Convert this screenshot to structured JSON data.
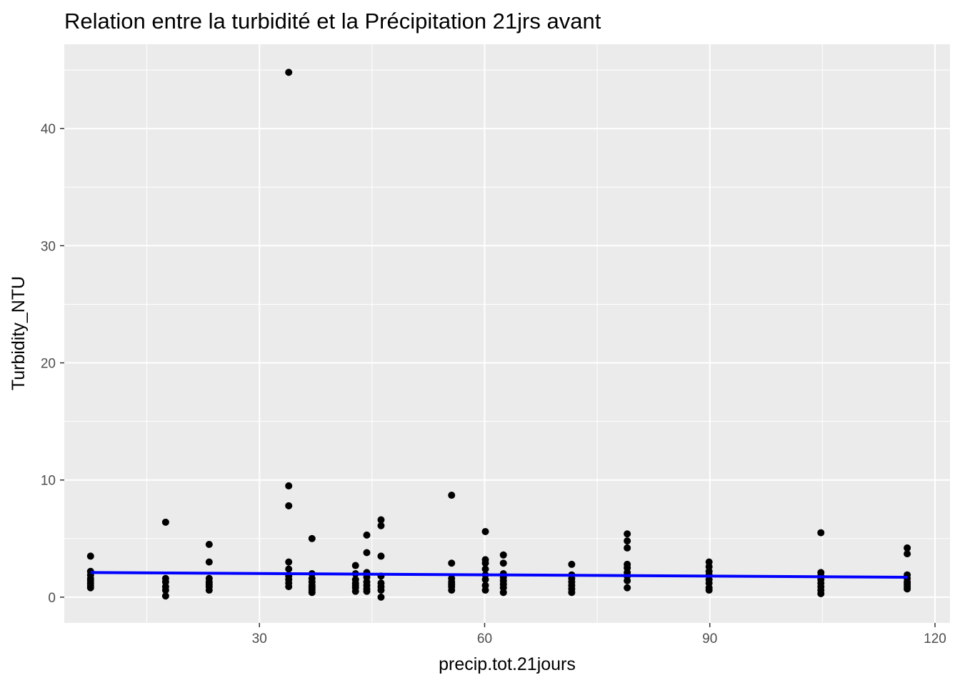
{
  "chart_data": {
    "type": "scatter",
    "title": "Relation entre la turbidité et la Précipitation 21jrs avant",
    "xlabel": "precip.tot.21jours",
    "ylabel": "Turbidity_NTU",
    "xlim": [
      4,
      122
    ],
    "ylim": [
      -2.2,
      47.2
    ],
    "x_ticks": [
      30,
      60,
      90,
      120
    ],
    "y_ticks": [
      0,
      10,
      20,
      30,
      40
    ],
    "x_tick_labels": [
      "30",
      "60",
      "90",
      "120"
    ],
    "y_tick_labels": [
      "0",
      "10",
      "20",
      "30",
      "40"
    ],
    "grid": true,
    "legend": "none",
    "colors": {
      "panel_background": "#ebebeb",
      "grid": "#ffffff",
      "points": "#000000",
      "trend_line": "#0000ff"
    },
    "points": [
      {
        "x": 7.5,
        "y": 3.5
      },
      {
        "x": 7.5,
        "y": 2.2
      },
      {
        "x": 7.5,
        "y": 1.9
      },
      {
        "x": 7.5,
        "y": 1.6
      },
      {
        "x": 7.5,
        "y": 1.4
      },
      {
        "x": 7.5,
        "y": 1.2
      },
      {
        "x": 7.5,
        "y": 1.0
      },
      {
        "x": 7.5,
        "y": 0.8
      },
      {
        "x": 17.5,
        "y": 6.4
      },
      {
        "x": 17.5,
        "y": 1.6
      },
      {
        "x": 17.5,
        "y": 1.3
      },
      {
        "x": 17.5,
        "y": 0.9
      },
      {
        "x": 17.5,
        "y": 0.6
      },
      {
        "x": 17.5,
        "y": 0.1
      },
      {
        "x": 23.3,
        "y": 4.5
      },
      {
        "x": 23.3,
        "y": 3.0
      },
      {
        "x": 23.3,
        "y": 1.6
      },
      {
        "x": 23.3,
        "y": 1.3
      },
      {
        "x": 23.3,
        "y": 1.1
      },
      {
        "x": 23.3,
        "y": 0.9
      },
      {
        "x": 23.3,
        "y": 0.6
      },
      {
        "x": 33.9,
        "y": 44.8
      },
      {
        "x": 33.9,
        "y": 9.5
      },
      {
        "x": 33.9,
        "y": 7.8
      },
      {
        "x": 33.9,
        "y": 3.0
      },
      {
        "x": 33.9,
        "y": 2.4
      },
      {
        "x": 33.9,
        "y": 1.8
      },
      {
        "x": 33.9,
        "y": 1.5
      },
      {
        "x": 33.9,
        "y": 1.2
      },
      {
        "x": 33.9,
        "y": 0.9
      },
      {
        "x": 37.0,
        "y": 5.0
      },
      {
        "x": 37.0,
        "y": 2.0
      },
      {
        "x": 37.0,
        "y": 1.6
      },
      {
        "x": 37.0,
        "y": 1.3
      },
      {
        "x": 37.0,
        "y": 1.0
      },
      {
        "x": 37.0,
        "y": 0.8
      },
      {
        "x": 37.0,
        "y": 0.6
      },
      {
        "x": 37.0,
        "y": 0.4
      },
      {
        "x": 42.8,
        "y": 2.7
      },
      {
        "x": 42.8,
        "y": 2.0
      },
      {
        "x": 42.8,
        "y": 1.5
      },
      {
        "x": 42.8,
        "y": 1.2
      },
      {
        "x": 42.8,
        "y": 1.0
      },
      {
        "x": 42.8,
        "y": 0.8
      },
      {
        "x": 42.8,
        "y": 0.5
      },
      {
        "x": 44.3,
        "y": 5.3
      },
      {
        "x": 44.3,
        "y": 3.8
      },
      {
        "x": 44.3,
        "y": 2.1
      },
      {
        "x": 44.3,
        "y": 1.7
      },
      {
        "x": 44.3,
        "y": 1.3
      },
      {
        "x": 44.3,
        "y": 1.0
      },
      {
        "x": 44.3,
        "y": 0.7
      },
      {
        "x": 44.3,
        "y": 0.5
      },
      {
        "x": 46.2,
        "y": 6.6
      },
      {
        "x": 46.2,
        "y": 6.1
      },
      {
        "x": 46.2,
        "y": 3.5
      },
      {
        "x": 46.2,
        "y": 1.8
      },
      {
        "x": 46.2,
        "y": 1.2
      },
      {
        "x": 46.2,
        "y": 0.9
      },
      {
        "x": 46.2,
        "y": 0.6
      },
      {
        "x": 46.2,
        "y": 0.0
      },
      {
        "x": 55.6,
        "y": 8.7
      },
      {
        "x": 55.6,
        "y": 2.9
      },
      {
        "x": 55.6,
        "y": 1.6
      },
      {
        "x": 55.6,
        "y": 1.3
      },
      {
        "x": 55.6,
        "y": 1.1
      },
      {
        "x": 55.6,
        "y": 0.9
      },
      {
        "x": 55.6,
        "y": 0.6
      },
      {
        "x": 60.1,
        "y": 5.6
      },
      {
        "x": 60.1,
        "y": 3.2
      },
      {
        "x": 60.1,
        "y": 2.9
      },
      {
        "x": 60.1,
        "y": 2.4
      },
      {
        "x": 60.1,
        "y": 1.9
      },
      {
        "x": 60.1,
        "y": 1.5
      },
      {
        "x": 60.1,
        "y": 1.0
      },
      {
        "x": 60.1,
        "y": 0.6
      },
      {
        "x": 62.5,
        "y": 3.6
      },
      {
        "x": 62.5,
        "y": 2.9
      },
      {
        "x": 62.5,
        "y": 2.0
      },
      {
        "x": 62.5,
        "y": 1.7
      },
      {
        "x": 62.5,
        "y": 1.4
      },
      {
        "x": 62.5,
        "y": 1.1
      },
      {
        "x": 62.5,
        "y": 0.8
      },
      {
        "x": 62.5,
        "y": 0.4
      },
      {
        "x": 71.6,
        "y": 2.8
      },
      {
        "x": 71.6,
        "y": 1.9
      },
      {
        "x": 71.6,
        "y": 1.6
      },
      {
        "x": 71.6,
        "y": 1.3
      },
      {
        "x": 71.6,
        "y": 1.0
      },
      {
        "x": 71.6,
        "y": 0.7
      },
      {
        "x": 71.6,
        "y": 0.4
      },
      {
        "x": 79.0,
        "y": 5.4
      },
      {
        "x": 79.0,
        "y": 4.8
      },
      {
        "x": 79.0,
        "y": 4.2
      },
      {
        "x": 79.0,
        "y": 2.8
      },
      {
        "x": 79.0,
        "y": 2.5
      },
      {
        "x": 79.0,
        "y": 2.1
      },
      {
        "x": 79.0,
        "y": 1.8
      },
      {
        "x": 79.0,
        "y": 1.4
      },
      {
        "x": 79.0,
        "y": 0.8
      },
      {
        "x": 89.9,
        "y": 3.0
      },
      {
        "x": 89.9,
        "y": 2.6
      },
      {
        "x": 89.9,
        "y": 2.2
      },
      {
        "x": 89.9,
        "y": 1.9
      },
      {
        "x": 89.9,
        "y": 1.5
      },
      {
        "x": 89.9,
        "y": 1.2
      },
      {
        "x": 89.9,
        "y": 0.8
      },
      {
        "x": 89.9,
        "y": 0.6
      },
      {
        "x": 104.8,
        "y": 5.5
      },
      {
        "x": 104.8,
        "y": 2.1
      },
      {
        "x": 104.8,
        "y": 1.8
      },
      {
        "x": 104.8,
        "y": 1.5
      },
      {
        "x": 104.8,
        "y": 1.2
      },
      {
        "x": 104.8,
        "y": 0.9
      },
      {
        "x": 104.8,
        "y": 0.6
      },
      {
        "x": 104.8,
        "y": 0.3
      },
      {
        "x": 116.3,
        "y": 4.2
      },
      {
        "x": 116.3,
        "y": 3.7
      },
      {
        "x": 116.3,
        "y": 1.9
      },
      {
        "x": 116.3,
        "y": 1.6
      },
      {
        "x": 116.3,
        "y": 1.3
      },
      {
        "x": 116.3,
        "y": 1.1
      },
      {
        "x": 116.3,
        "y": 0.9
      },
      {
        "x": 116.3,
        "y": 0.7
      }
    ],
    "trend_line": {
      "x": [
        7.5,
        116.3
      ],
      "y": [
        2.1,
        1.7
      ]
    }
  }
}
